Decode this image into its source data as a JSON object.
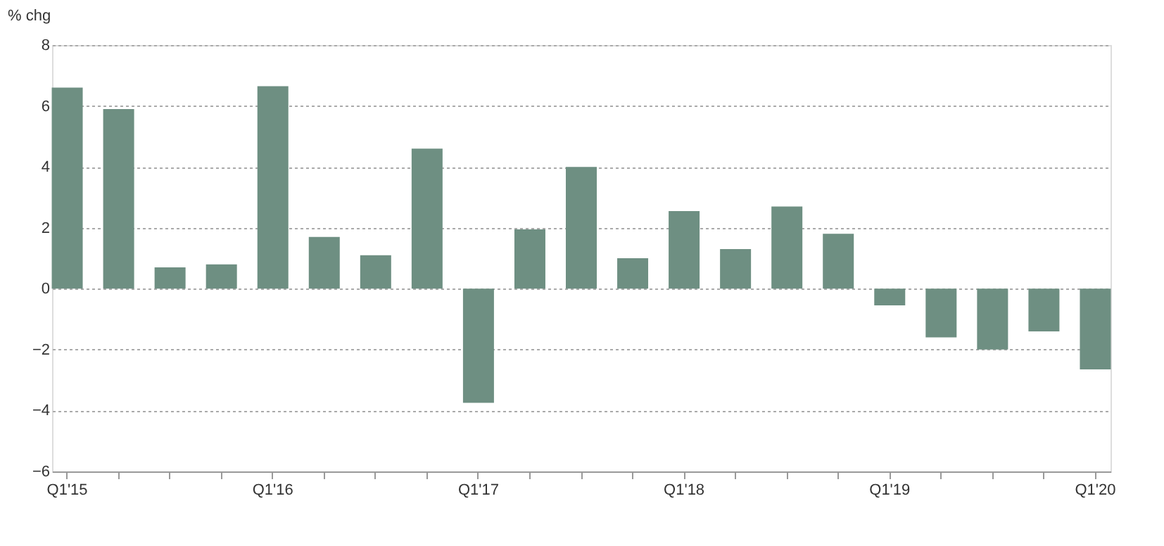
{
  "chart_data": {
    "type": "bar",
    "ylabel": "% chg",
    "categories": [
      "Q1'15",
      null,
      null,
      null,
      "Q1'16",
      null,
      null,
      null,
      "Q1'17",
      null,
      null,
      null,
      "Q1'18",
      null,
      null,
      null,
      "Q1'19",
      null,
      null,
      null,
      "Q1'20"
    ],
    "values": [
      6.6,
      5.9,
      0.7,
      0.8,
      6.65,
      1.7,
      1.1,
      4.6,
      -3.75,
      1.95,
      4.0,
      1.0,
      2.55,
      1.3,
      2.7,
      1.8,
      -0.55,
      -1.6,
      -2.0,
      -1.4,
      -2.65
    ],
    "color": "#6e8f82",
    "ylim": [
      -6,
      8
    ],
    "yticks": [
      -6,
      -4,
      -2,
      0,
      2,
      4,
      6,
      8
    ],
    "grid": "y"
  }
}
